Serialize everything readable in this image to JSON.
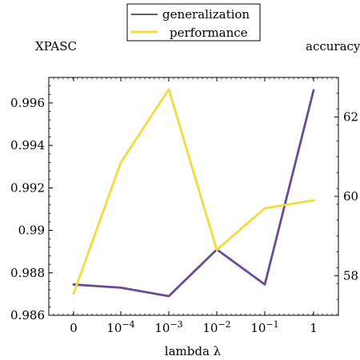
{
  "chart_data": {
    "type": "line",
    "title": "",
    "xlabel": "lambda λ",
    "categories": [
      "0",
      "10⁻⁴",
      "10⁻³",
      "10⁻²",
      "10⁻¹",
      "1"
    ],
    "x_ticks": [
      {
        "base": "0",
        "exp": ""
      },
      {
        "base": "10",
        "exp": "−4"
      },
      {
        "base": "10",
        "exp": "−3"
      },
      {
        "base": "10",
        "exp": "−2"
      },
      {
        "base": "10",
        "exp": "−1"
      },
      {
        "base": "1",
        "exp": ""
      }
    ],
    "y_left": {
      "label": "XPASC",
      "lim": [
        0.986,
        0.9972
      ],
      "ticks": [
        0.986,
        0.988,
        0.99,
        0.992,
        0.994,
        0.996
      ],
      "tick_labels": [
        "0.986",
        "0.988",
        "0.99",
        "0.992",
        "0.994",
        "0.996"
      ]
    },
    "y_right": {
      "label": "accuracy",
      "lim": [
        57.0,
        63.0
      ],
      "ticks": [
        58,
        60,
        62
      ],
      "tick_labels": [
        "58",
        "60",
        "62"
      ]
    },
    "series": [
      {
        "name": "generalization",
        "axis": "left",
        "color": "#6a4c93",
        "values": [
          0.98745,
          0.9873,
          0.9869,
          0.9891,
          0.98745,
          0.9966
        ]
      },
      {
        "name": "performance",
        "axis": "right",
        "color": "#f2dc3c",
        "values": [
          57.55,
          60.85,
          62.7,
          58.65,
          59.7,
          59.9
        ]
      }
    ],
    "legend": {
      "position": "top-center",
      "entries": [
        {
          "label": "generalization",
          "swatch_color": "#000000"
        },
        {
          "label": "performance",
          "swatch_color": "#f2dc3c"
        }
      ]
    },
    "grid": false
  }
}
